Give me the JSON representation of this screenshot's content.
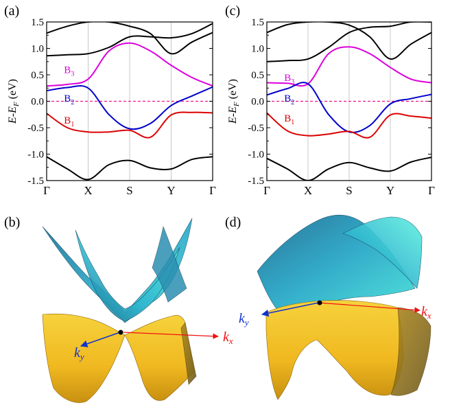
{
  "figure": {
    "panel_labels": [
      "(a)",
      "(c)",
      "(b)",
      "(d)"
    ],
    "surface_axis_labels": {
      "kx": "k",
      "kx_sub": "x",
      "ky": "k",
      "ky_sub": "y"
    },
    "colors": {
      "upper_surface": "#2aa8c8",
      "lower_surface": "#f2c12e",
      "kx_arrow": "#ee1111",
      "ky_arrow": "#1133cc"
    }
  },
  "chart_data": [
    {
      "type": "line",
      "panel": "(a)",
      "ylabel": "E-E_F (eV)",
      "ylim": [
        -1.5,
        1.5
      ],
      "yticks": [
        -1.5,
        -1.0,
        -0.5,
        0.0,
        0.5,
        1.0,
        1.5
      ],
      "ytick_labels": [
        "-1.5",
        "-1.0",
        "-0.5",
        "0.0",
        "0.5",
        "1.0",
        "1.5"
      ],
      "xticks": [
        0,
        1,
        2,
        3,
        4
      ],
      "xtick_labels": [
        "Γ",
        "X",
        "S",
        "Y",
        "Γ"
      ],
      "fermi_level": 0.0,
      "band_labels": [
        {
          "text": "B",
          "sub": "3",
          "color": "#dd00dd",
          "x": 0.22,
          "y": 0.6
        },
        {
          "text": "B",
          "sub": "2",
          "color": "#0000cc",
          "x": 0.22,
          "y": 0.06
        },
        {
          "text": "B",
          "sub": "1",
          "color": "#dd0000",
          "x": 0.22,
          "y": -0.36
        }
      ],
      "series": [
        {
          "color": "#dd00dd",
          "x": [
            0,
            0.5,
            1,
            1.5,
            2,
            2.5,
            3,
            3.5,
            4
          ],
          "y": [
            0.29,
            0.32,
            0.42,
            0.95,
            1.1,
            0.95,
            0.68,
            0.45,
            0.29
          ]
        },
        {
          "color": "#0000cc",
          "x": [
            0,
            0.5,
            1,
            1.5,
            2,
            2.5,
            3,
            3.5,
            4
          ],
          "y": [
            0.2,
            0.26,
            0.25,
            -0.25,
            -0.52,
            -0.42,
            -0.08,
            0.1,
            0.27
          ]
        },
        {
          "color": "#dd0000",
          "x": [
            0,
            0.5,
            1,
            1.5,
            2,
            2.5,
            3,
            3.5,
            4
          ],
          "y": [
            -0.23,
            -0.5,
            -0.58,
            -0.58,
            -0.55,
            -0.68,
            -0.26,
            -0.21,
            -0.22
          ]
        },
        {
          "color": "#000000",
          "x": [
            0,
            0.5,
            1,
            1.5,
            2,
            2.5,
            3,
            3.5,
            4
          ],
          "y": [
            0.86,
            0.88,
            0.9,
            1.02,
            1.22,
            1.22,
            1.2,
            1.28,
            1.47
          ]
        },
        {
          "color": "#000000",
          "x": [
            0,
            0.5,
            1,
            1.5,
            2,
            2.5,
            3,
            3.5,
            4
          ],
          "y": [
            1.29,
            1.42,
            1.5,
            1.5,
            1.42,
            1.28,
            0.9,
            1.12,
            1.3
          ]
        },
        {
          "color": "#000000",
          "x": [
            0,
            0.5,
            1,
            1.5,
            2,
            2.5,
            3,
            3.5,
            4
          ],
          "y": [
            -1.05,
            -1.28,
            -1.48,
            -1.2,
            -1.12,
            -1.26,
            -1.28,
            -1.1,
            -1.05
          ]
        }
      ]
    },
    {
      "type": "line",
      "panel": "(c)",
      "ylabel": "E-E_F (eV)",
      "ylim": [
        -1.5,
        1.5
      ],
      "yticks": [
        -1.5,
        -1.0,
        -0.5,
        0.0,
        0.5,
        1.0,
        1.5
      ],
      "ytick_labels": [
        "-1.5",
        "-1.0",
        "-0.5",
        "0.0",
        "0.5",
        "1.0",
        "1.5"
      ],
      "xticks": [
        0,
        1,
        2,
        3,
        4
      ],
      "xtick_labels": [
        "Γ",
        "X",
        "S",
        "Y",
        "Γ"
      ],
      "fermi_level": 0.0,
      "band_labels": [
        {
          "text": "B",
          "sub": "3",
          "color": "#dd00dd",
          "x": 0.22,
          "y": 0.45
        },
        {
          "text": "B",
          "sub": "2",
          "color": "#0000cc",
          "x": 0.22,
          "y": 0.06
        },
        {
          "text": "B",
          "sub": "1",
          "color": "#dd0000",
          "x": 0.22,
          "y": -0.32
        }
      ],
      "series": [
        {
          "color": "#dd00dd",
          "x": [
            0,
            0.5,
            1,
            1.5,
            2,
            2.5,
            3,
            3.5,
            4
          ],
          "y": [
            0.35,
            0.34,
            0.33,
            0.9,
            1.03,
            0.9,
            0.64,
            0.42,
            0.35
          ]
        },
        {
          "color": "#0000cc",
          "x": [
            0,
            0.5,
            1,
            1.5,
            2,
            2.5,
            3,
            3.5,
            4
          ],
          "y": [
            0.12,
            0.24,
            0.33,
            -0.25,
            -0.58,
            -0.46,
            -0.05,
            0.05,
            0.13
          ]
        },
        {
          "color": "#dd0000",
          "x": [
            0,
            0.5,
            1,
            1.5,
            2,
            2.5,
            3,
            3.5,
            4
          ],
          "y": [
            -0.22,
            -0.56,
            -0.65,
            -0.62,
            -0.57,
            -0.68,
            -0.26,
            -0.28,
            -0.32
          ]
        },
        {
          "color": "#000000",
          "x": [
            0,
            0.5,
            1,
            1.5,
            2,
            2.5,
            3,
            3.5,
            4
          ],
          "y": [
            0.75,
            0.77,
            0.8,
            1.02,
            1.3,
            1.4,
            1.42,
            1.5,
            1.5
          ]
        },
        {
          "color": "#000000",
          "x": [
            0,
            0.5,
            1,
            1.5,
            2,
            2.5,
            3,
            3.5,
            4
          ],
          "y": [
            1.3,
            1.45,
            1.5,
            1.5,
            1.44,
            1.22,
            0.8,
            1.08,
            1.3
          ]
        },
        {
          "color": "#000000",
          "x": [
            0,
            0.5,
            1,
            1.5,
            2,
            2.5,
            3,
            3.5,
            4
          ],
          "y": [
            -1.08,
            -1.28,
            -1.5,
            -1.28,
            -1.16,
            -1.26,
            -1.32,
            -1.15,
            -1.06
          ]
        }
      ]
    }
  ]
}
